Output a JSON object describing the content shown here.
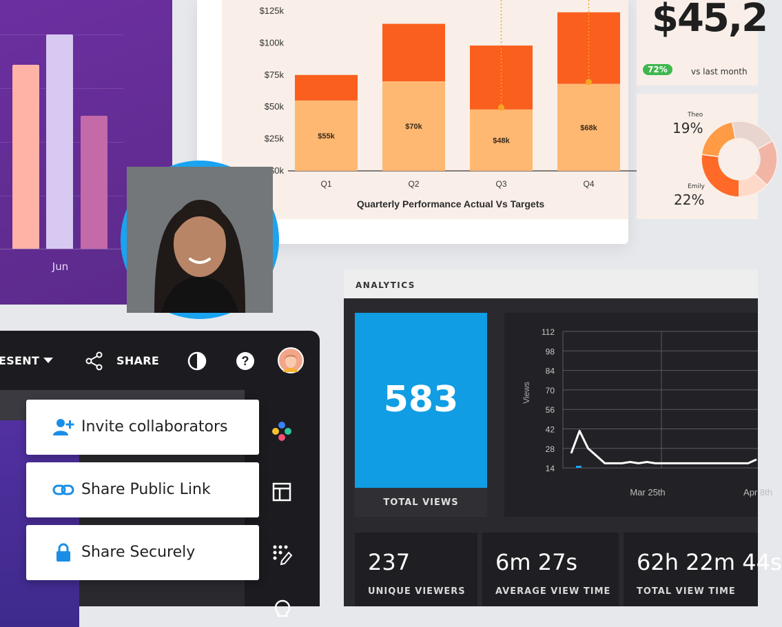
{
  "purple_chart": {
    "month_label": "Jun",
    "bars": [
      {
        "name": "bar-1",
        "color": "#ffb3a7",
        "value": 0.86
      },
      {
        "name": "bar-2",
        "color": "#d7c9f1",
        "value": 1.0
      },
      {
        "name": "bar-3",
        "color": "#c46aa8",
        "value": 0.62
      }
    ]
  },
  "chart_data": {
    "type": "bar",
    "title": "Quarterly Performance Actual Vs Targets",
    "categories": [
      "Q1",
      "Q2",
      "Q3",
      "Q4"
    ],
    "y_ticks": [
      "$0k",
      "$25k",
      "$50k",
      "$75k",
      "$100k",
      "$125k"
    ],
    "ylim": [
      0,
      125
    ],
    "series": [
      {
        "name": "Actual",
        "color": "#ffb872",
        "values": [
          55,
          70,
          48,
          68
        ],
        "labels": [
          "$55k",
          "$70k",
          "$48k",
          "$68k"
        ]
      },
      {
        "name": "Target",
        "color": "#fa5f1e",
        "values": [
          20,
          45,
          50,
          56
        ]
      }
    ],
    "stacked": true,
    "grid": false
  },
  "revenue": {
    "value": "$45,2",
    "badge": "72%",
    "comparison": "vs last month"
  },
  "donut": {
    "people": [
      {
        "name": "Theo",
        "percent": "19%"
      },
      {
        "name": "Emily",
        "percent": "22%"
      }
    ],
    "colors": [
      "#ff6a28",
      "#ff9a45",
      "#e8d5cf",
      "#f2b5a5",
      "#ffd9c8"
    ]
  },
  "editor": {
    "present_label": "ESENT",
    "share_label": "SHARE",
    "share_options": [
      {
        "label": "Invite collaborators",
        "icon": "add-person-icon"
      },
      {
        "label": "Share Public Link",
        "icon": "link-icon"
      },
      {
        "label": "Share Securely",
        "icon": "lock-icon"
      }
    ],
    "sidebar_icons": [
      "palette-icon",
      "layout-icon",
      "magic-edit-icon",
      "lightbulb-icon"
    ]
  },
  "analytics": {
    "title": "ANALYTICS",
    "total_views": {
      "value": "583",
      "label": "TOTAL VIEWS"
    },
    "views_chart": {
      "y_axis_label": "Views",
      "y_ticks": [
        "112",
        "98",
        "84",
        "70",
        "56",
        "42",
        "28",
        "14"
      ],
      "x_ticks": [
        "Mar 25th",
        "Apr 8th"
      ],
      "points": [
        20,
        38,
        24,
        18,
        12,
        12,
        12,
        13,
        12,
        13,
        12,
        12,
        12,
        12,
        12,
        12,
        12,
        12,
        12,
        12,
        12,
        12,
        15
      ]
    },
    "stats": [
      {
        "value": "237",
        "label": "UNIQUE VIEWERS"
      },
      {
        "value": "6m 27s",
        "label": "AVERAGE VIEW TIME"
      },
      {
        "value": "62h 22m 44s",
        "label": "TOTAL VIEW TIME"
      }
    ]
  }
}
